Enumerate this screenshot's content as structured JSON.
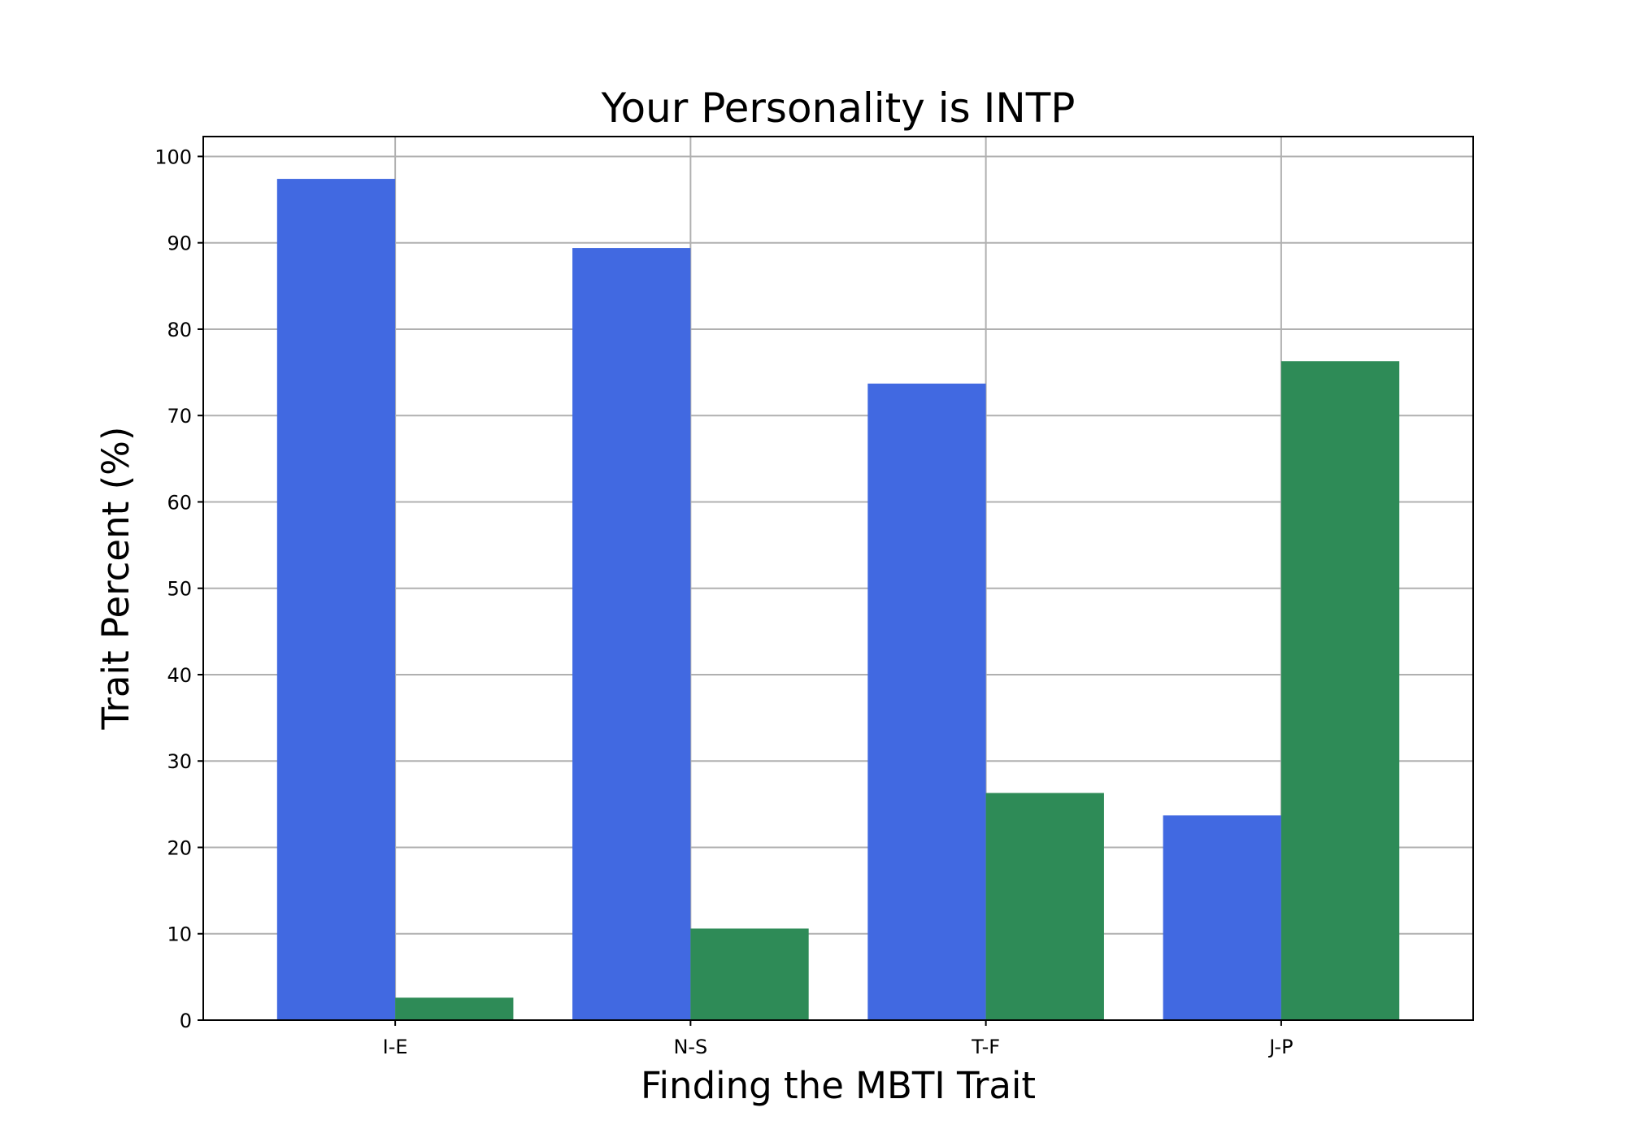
{
  "chart_data": {
    "type": "bar",
    "title": "Your Personality is INTP",
    "xlabel": "Finding the MBTI Trait",
    "ylabel": "Trait Percent (%)",
    "categories": [
      "I-E",
      "N-S",
      "T-F",
      "J-P"
    ],
    "series": [
      {
        "values": [
          97.4,
          89.4,
          73.7,
          23.7
        ],
        "color": "#4169E1"
      },
      {
        "values": [
          2.6,
          10.6,
          26.3,
          76.3
        ],
        "color": "#2E8B57"
      }
    ],
    "ylim": [
      0,
      102.3
    ],
    "yticks": [
      0,
      10,
      20,
      30,
      40,
      50,
      60,
      70,
      80,
      90,
      100
    ],
    "grid": true
  }
}
